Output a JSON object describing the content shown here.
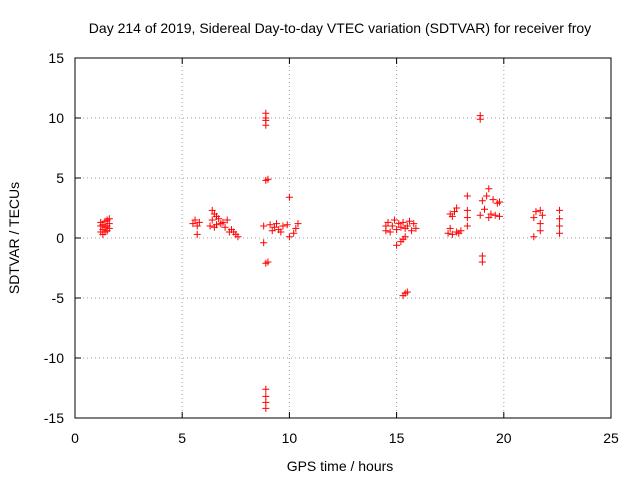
{
  "chart_data": {
    "type": "scatter",
    "title": "Day 214 of 2019, Sidereal Day-to-day VTEC variation (SDTVAR) for receiver froy",
    "xlabel": "GPS time / hours",
    "ylabel": "SDTVAR / TECUs",
    "xlim": [
      0,
      25
    ],
    "ylim": [
      -15,
      15
    ],
    "x_ticks": [
      "0",
      "5",
      "10",
      "15",
      "20",
      "25"
    ],
    "y_ticks": [
      "-15",
      "-10",
      "-5",
      "0",
      "5",
      "10",
      "15"
    ],
    "grid": true,
    "marker": "plus",
    "colors": {
      "series": "#ff0000",
      "axis": "#000000",
      "grid": "#a0a0a0"
    },
    "series": [
      {
        "name": "SDTVAR",
        "points": [
          [
            1.2,
            0.5
          ],
          [
            1.2,
            1.0
          ],
          [
            1.2,
            1.3
          ],
          [
            1.3,
            0.3
          ],
          [
            1.3,
            0.7
          ],
          [
            1.3,
            1.1
          ],
          [
            1.4,
            0.5
          ],
          [
            1.4,
            0.9
          ],
          [
            1.4,
            1.4
          ],
          [
            1.5,
            0.6
          ],
          [
            1.5,
            1.0
          ],
          [
            1.5,
            1.5
          ],
          [
            1.6,
            0.8
          ],
          [
            1.6,
            1.2
          ],
          [
            1.6,
            1.6
          ],
          [
            5.5,
            1.2
          ],
          [
            5.6,
            1.5
          ],
          [
            5.7,
            0.3
          ],
          [
            5.7,
            1.0
          ],
          [
            5.8,
            1.3
          ],
          [
            6.3,
            1.0
          ],
          [
            6.4,
            1.5
          ],
          [
            6.4,
            2.3
          ],
          [
            6.5,
            0.9
          ],
          [
            6.5,
            2.0
          ],
          [
            6.6,
            1.1
          ],
          [
            6.6,
            1.8
          ],
          [
            6.7,
            1.6
          ],
          [
            6.8,
            1.2
          ],
          [
            6.9,
            1.3
          ],
          [
            7.0,
            0.9
          ],
          [
            7.1,
            1.5
          ],
          [
            7.2,
            0.5
          ],
          [
            7.3,
            0.7
          ],
          [
            7.4,
            0.5
          ],
          [
            7.5,
            0.3
          ],
          [
            7.6,
            0.1
          ],
          [
            8.8,
            1.0
          ],
          [
            8.8,
            -0.4
          ],
          [
            8.9,
            4.8
          ],
          [
            8.9,
            10.4
          ],
          [
            8.9,
            10.0
          ],
          [
            8.9,
            9.8
          ],
          [
            8.9,
            9.4
          ],
          [
            8.9,
            -2.1
          ],
          [
            8.9,
            -12.6
          ],
          [
            8.9,
            -13.2
          ],
          [
            8.9,
            -13.7
          ],
          [
            8.9,
            -14.2
          ],
          [
            9.0,
            4.9
          ],
          [
            9.0,
            -2.0
          ],
          [
            9.1,
            1.1
          ],
          [
            9.2,
            0.6
          ],
          [
            9.3,
            0.9
          ],
          [
            9.4,
            1.2
          ],
          [
            9.5,
            0.7
          ],
          [
            9.6,
            0.5
          ],
          [
            9.7,
            1.0
          ],
          [
            9.9,
            1.1
          ],
          [
            10.0,
            3.4
          ],
          [
            10.0,
            0.1
          ],
          [
            10.2,
            0.4
          ],
          [
            10.3,
            0.8
          ],
          [
            10.4,
            1.2
          ],
          [
            14.5,
            0.6
          ],
          [
            14.5,
            1.0
          ],
          [
            14.6,
            1.3
          ],
          [
            14.7,
            0.5
          ],
          [
            14.8,
            1.0
          ],
          [
            14.9,
            1.5
          ],
          [
            15.0,
            0.7
          ],
          [
            15.0,
            -0.6
          ],
          [
            15.1,
            1.2
          ],
          [
            15.2,
            0.9
          ],
          [
            15.2,
            -0.3
          ],
          [
            15.3,
            1.3
          ],
          [
            15.3,
            -0.1
          ],
          [
            15.4,
            0.8
          ],
          [
            15.4,
            0.1
          ],
          [
            15.3,
            -4.8
          ],
          [
            15.4,
            -4.6
          ],
          [
            15.5,
            -4.5
          ],
          [
            15.5,
            1.0
          ],
          [
            15.6,
            1.4
          ],
          [
            15.7,
            0.6
          ],
          [
            15.8,
            1.2
          ],
          [
            15.9,
            0.8
          ],
          [
            17.4,
            0.4
          ],
          [
            17.5,
            2.0
          ],
          [
            17.5,
            0.8
          ],
          [
            17.6,
            0.3
          ],
          [
            17.6,
            1.8
          ],
          [
            17.7,
            2.2
          ],
          [
            17.8,
            0.5
          ],
          [
            17.8,
            2.5
          ],
          [
            17.9,
            0.4
          ],
          [
            18.0,
            0.6
          ],
          [
            18.3,
            1.0
          ],
          [
            18.3,
            1.7
          ],
          [
            18.3,
            2.3
          ],
          [
            18.3,
            3.5
          ],
          [
            18.9,
            1.9
          ],
          [
            18.9,
            10.2
          ],
          [
            18.9,
            9.9
          ],
          [
            19.0,
            -1.5
          ],
          [
            19.0,
            -2.0
          ],
          [
            19.0,
            3.1
          ],
          [
            19.1,
            2.4
          ],
          [
            19.2,
            3.5
          ],
          [
            19.3,
            4.1
          ],
          [
            19.3,
            1.7
          ],
          [
            19.4,
            2.0
          ],
          [
            19.5,
            3.2
          ],
          [
            19.6,
            1.9
          ],
          [
            19.7,
            2.9
          ],
          [
            19.8,
            3.0
          ],
          [
            19.8,
            1.8
          ],
          [
            21.4,
            0.1
          ],
          [
            21.4,
            1.7
          ],
          [
            21.5,
            2.2
          ],
          [
            21.7,
            1.2
          ],
          [
            21.7,
            0.6
          ],
          [
            21.7,
            2.3
          ],
          [
            21.8,
            1.9
          ],
          [
            22.6,
            0.4
          ],
          [
            22.6,
            1.0
          ],
          [
            22.6,
            1.6
          ],
          [
            22.6,
            2.3
          ]
        ]
      }
    ]
  }
}
